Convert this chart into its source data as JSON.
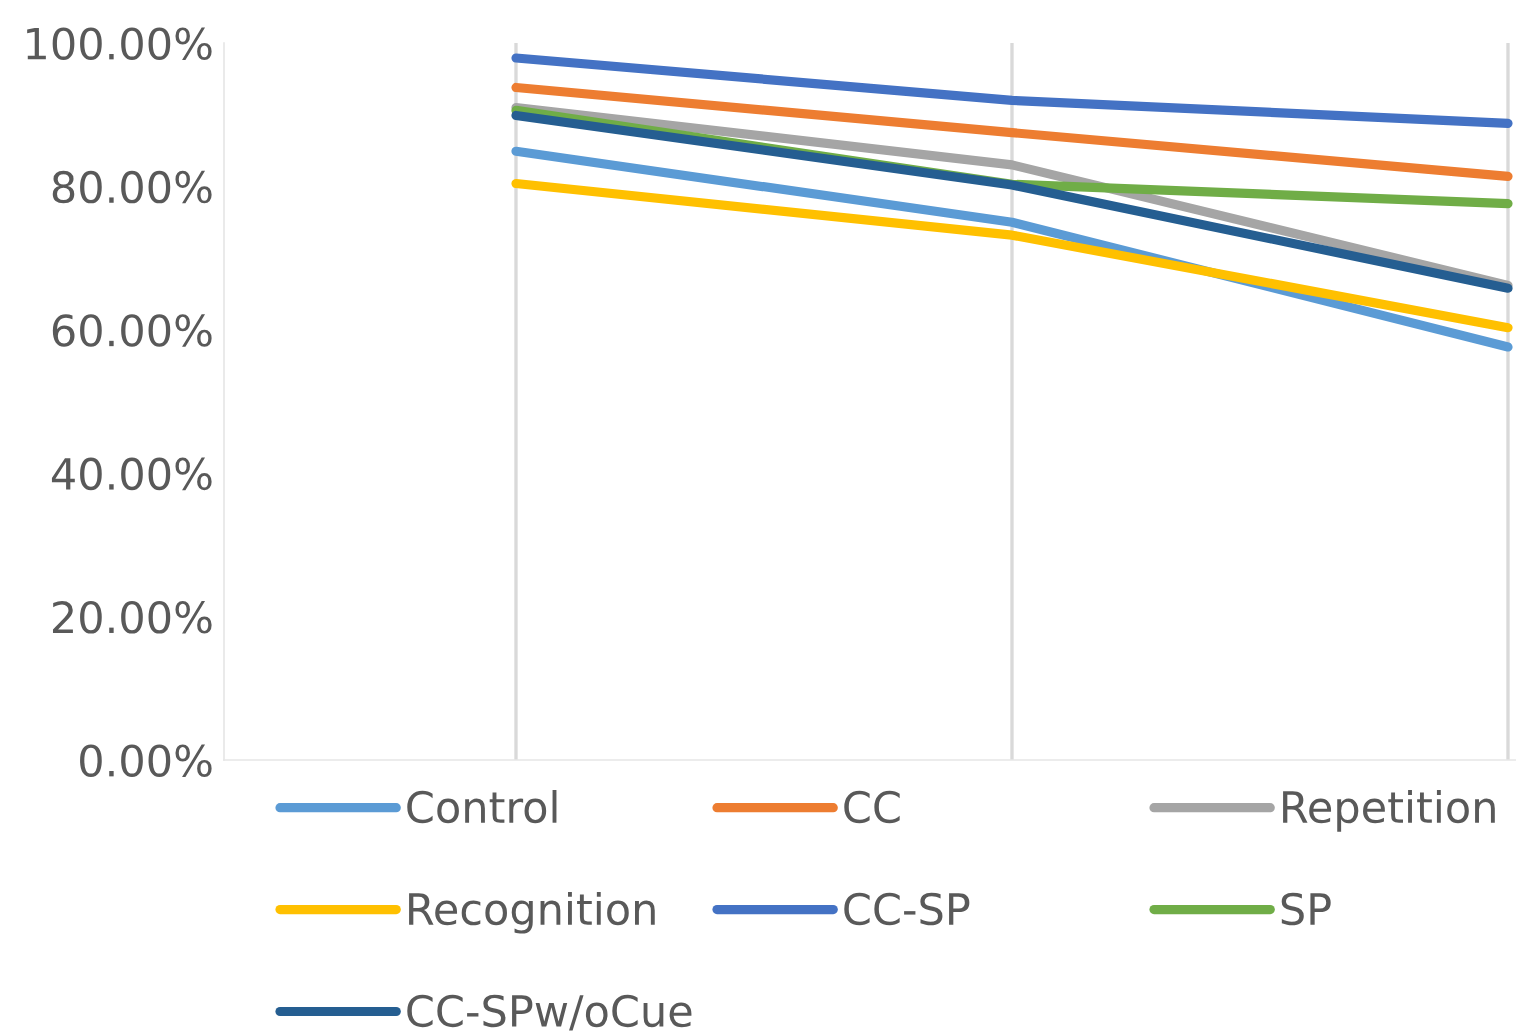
{
  "chart_data": {
    "type": "line",
    "categories": [
      null,
      null,
      null
    ],
    "series": [
      {
        "name": "Control",
        "color": "#5b9bd5",
        "values": [
          84.9,
          75.0,
          57.6
        ]
      },
      {
        "name": "CC",
        "color": "#ed7d31",
        "values": [
          93.8,
          87.5,
          81.4
        ]
      },
      {
        "name": "Repetition",
        "color": "#a5a5a5",
        "values": [
          91.0,
          83.0,
          66.2
        ]
      },
      {
        "name": "Recognition",
        "color": "#ffc000",
        "values": [
          80.4,
          73.2,
          60.3
        ]
      },
      {
        "name": "CC-SP",
        "color": "#4472c4",
        "values": [
          97.9,
          92.0,
          88.8
        ]
      },
      {
        "name": "SP",
        "color": "#70ad47",
        "values": [
          90.6,
          80.3,
          77.6
        ]
      },
      {
        "name": "CC-SPw/oCue",
        "color": "#255e91",
        "values": [
          89.9,
          80.2,
          65.8
        ]
      }
    ],
    "ylim": [
      0,
      100
    ],
    "yticks": [
      {
        "value": 0,
        "label": "0.00%"
      },
      {
        "value": 20,
        "label": "20.00%"
      },
      {
        "value": 40,
        "label": "40.00%"
      },
      {
        "value": 60,
        "label": "60.00%"
      },
      {
        "value": 80,
        "label": "80.00%"
      },
      {
        "value": 100,
        "label": "100.00%"
      }
    ],
    "tick_labels": "y",
    "grid": "x",
    "legend": "bottom",
    "line_style": "solid"
  }
}
